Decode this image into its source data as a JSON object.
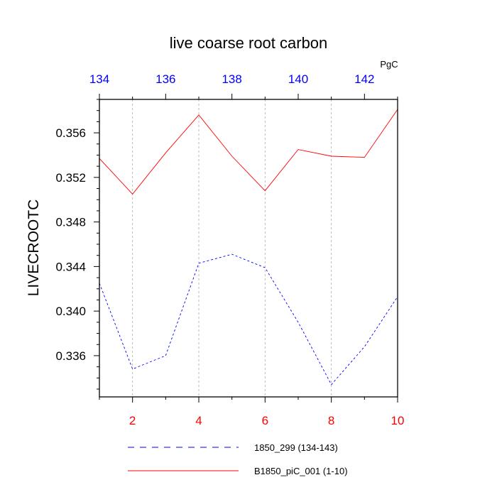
{
  "chart_data": {
    "type": "line",
    "title": "live coarse root carbon",
    "units": "PgC",
    "ylabel": "LIVECROOTC",
    "ylim": [
      0.3323,
      0.359
    ],
    "yticks": [
      0.336,
      0.34,
      0.344,
      0.348,
      0.352,
      0.356
    ],
    "ytick_labels": [
      "0.336",
      "0.340",
      "0.344",
      "0.348",
      "0.352",
      "0.356"
    ],
    "x_bottom": {
      "range": [
        1,
        10
      ],
      "ticks": [
        2,
        4,
        6,
        8,
        10
      ],
      "tick_labels": [
        "2",
        "4",
        "6",
        "8",
        "10"
      ],
      "color": "#ff0000"
    },
    "x_top": {
      "range": [
        134,
        143
      ],
      "ticks": [
        134,
        136,
        138,
        140,
        142
      ],
      "tick_labels": [
        "134",
        "136",
        "138",
        "140",
        "142"
      ],
      "color": "#0000ff"
    },
    "grid": "vertical dashed at bottom major ticks",
    "legend_placement": "bottom",
    "series": [
      {
        "name": "1850_299 (134-143)",
        "axis": "top",
        "color": "#0000ff",
        "dash": "dashed",
        "x": [
          134,
          135,
          136,
          137,
          138,
          139,
          140,
          141,
          142,
          143
        ],
        "values": [
          0.3425,
          0.3348,
          0.336,
          0.3443,
          0.3451,
          0.3439,
          0.339,
          0.3334,
          0.3368,
          0.3413
        ]
      },
      {
        "name": "B1850_piC_001 (1-10)",
        "axis": "bottom",
        "color": "#ff0000",
        "dash": "solid",
        "x": [
          1,
          2,
          3,
          4,
          5,
          6,
          7,
          8,
          9,
          10
        ],
        "values": [
          0.3537,
          0.3505,
          0.3542,
          0.3576,
          0.3539,
          0.3508,
          0.3545,
          0.3539,
          0.3538,
          0.3581
        ]
      }
    ]
  }
}
